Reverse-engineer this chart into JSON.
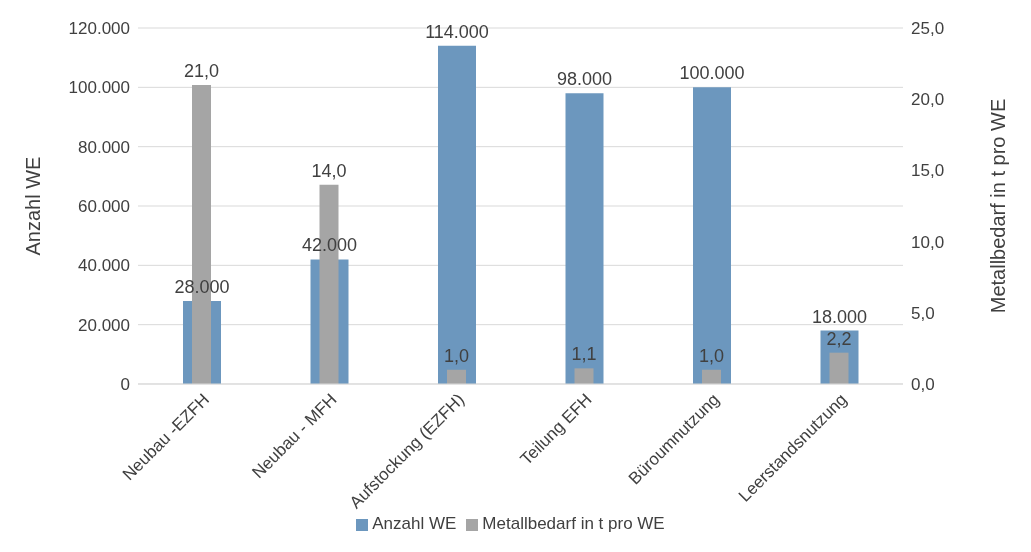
{
  "chart_data": {
    "type": "bar",
    "categories": [
      "Neubau -EZFH",
      "Neubau - MFH",
      "Aufstockung (EZFH)",
      "Teilung EFH",
      "Büroumnutzung",
      "Leerstandsnutzung"
    ],
    "series": [
      {
        "name": "Anzahl WE",
        "color": "#6c97be",
        "values": [
          28000,
          42000,
          114000,
          98000,
          100000,
          18000
        ],
        "value_labels": [
          "28.000",
          "42.000",
          "114.000",
          "98.000",
          "100.000",
          "18.000"
        ]
      },
      {
        "name": "Metallbedarf in t pro WE",
        "color": "#a5a5a5",
        "axis": "y2",
        "values": [
          21.0,
          14.0,
          1.0,
          1.1,
          1.0,
          2.2
        ],
        "value_labels": [
          "21,0",
          "14,0",
          "1,0",
          "1,1",
          "1,0",
          "2,2"
        ]
      }
    ],
    "ylabel": "Anzahl WE",
    "y2label": "Metallbedarf in t pro WE",
    "ylim": [
      0,
      120000
    ],
    "yticks": [
      0,
      {
        "value": 20000,
        "label": "20.000"
      },
      {
        "value": 40000,
        "label": "40.000"
      },
      {
        "value": 60000,
        "label": "60.000"
      },
      {
        "value": 80000,
        "label": "80.000"
      },
      {
        "value": 100000,
        "label": "100.000"
      },
      {
        "value": 120000,
        "label": "120.000"
      }
    ],
    "y2lim": [
      0,
      25
    ],
    "y2ticks": [
      {
        "value": 0,
        "label": "0,0"
      },
      {
        "value": 5,
        "label": "5,0"
      },
      {
        "value": 10,
        "label": "10,0"
      },
      {
        "value": 15,
        "label": "15,0"
      },
      {
        "value": 20,
        "label": "20,0"
      },
      {
        "value": 25,
        "label": "25,0"
      }
    ],
    "grid": "y",
    "legend": "bottom"
  }
}
